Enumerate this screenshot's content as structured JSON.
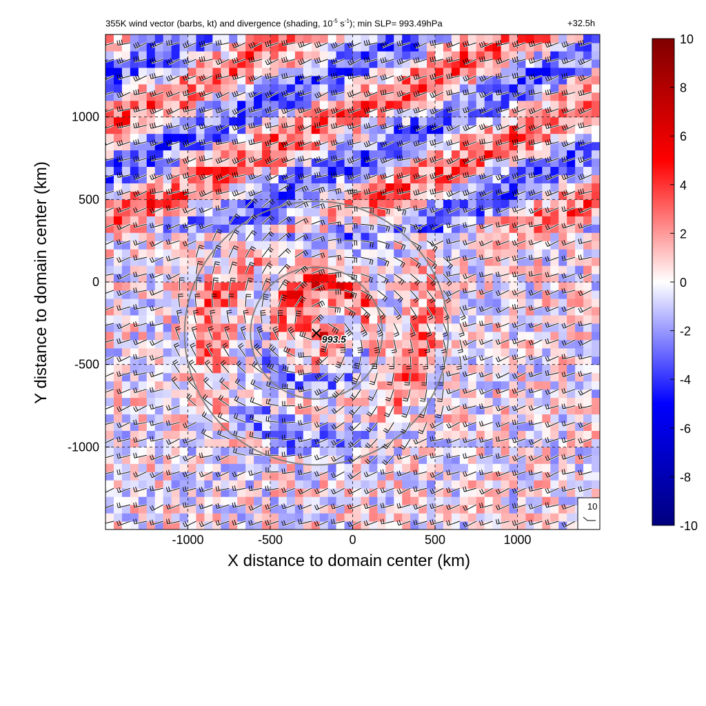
{
  "title": {
    "main_prefix": "355K wind vector (barbs, kt) and divergence (shading, 10",
    "main_exp1": "-5",
    "main_mid": " s",
    "main_exp2": "-1",
    "main_suffix": "); min SLP= 993.49hPa",
    "forecast_time": "+32.5h"
  },
  "chart_data": {
    "type": "heatmap",
    "xlabel": "X distance to domain center (km)",
    "ylabel": "Y distance to domain center (km)",
    "xlim": [
      -1500,
      1500
    ],
    "ylim": [
      -1500,
      1500
    ],
    "x_ticks": [
      -1000,
      -500,
      0,
      500,
      1000
    ],
    "y_ticks": [
      -1000,
      -500,
      0,
      500,
      1000
    ],
    "grid": "dashed",
    "colorbar": {
      "min": -10,
      "max": 10,
      "ticks": [
        -10,
        -8,
        -6,
        -4,
        -2,
        0,
        2,
        4,
        6,
        8,
        10
      ],
      "colors": [
        "#00007f",
        "#0000ff",
        "#ffffff",
        "#ff0000",
        "#7f0000"
      ]
    },
    "storm_center": {
      "x": -220,
      "y": -310,
      "label": "993.5"
    },
    "range_rings_km": [
      400,
      800
    ],
    "barb_legend": {
      "value": "10"
    }
  }
}
